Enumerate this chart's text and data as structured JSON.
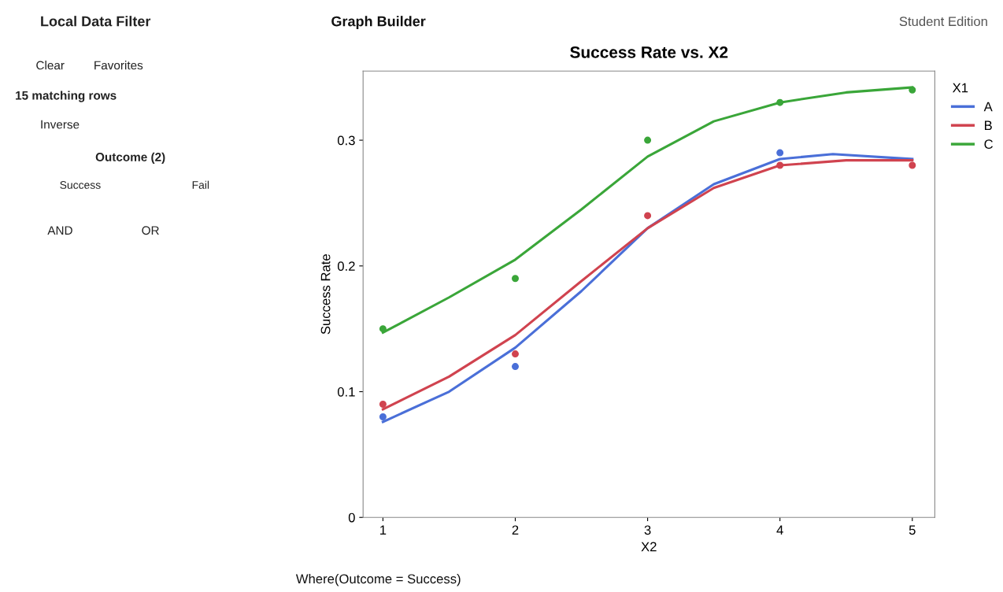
{
  "chart_data": [
    {
      "type": "other",
      "annotations": [
        "Local Data Filter",
        "Clear",
        "Favorites",
        "15 matching rows",
        "Inverse",
        "Outcome (2)",
        "Success",
        "Fail",
        "AND",
        "OR"
      ]
    },
    {
      "type": "line",
      "title": "Success Rate vs. X2",
      "xlabel": "X2",
      "ylabel": "Success Rate",
      "legend_title": "X1",
      "legend": "right",
      "grid": false,
      "marker": "none",
      "line_style": "solid",
      "annotations": [
        "Graph Builder",
        "Student Edition",
        "Where(Outcome = Success)"
      ],
      "xlim": [
        0.85,
        5.17
      ],
      "ylim": [
        0,
        0.355
      ],
      "xticks": [
        1,
        2,
        3,
        4,
        5
      ],
      "yticks": [
        0,
        {
          "value": 0.1,
          "label": "0.1"
        },
        {
          "value": 0.2,
          "label": "0.2"
        },
        {
          "value": 0.3,
          "label": "0.3"
        }
      ],
      "series": [
        {
          "name": "A",
          "color": "#4a6fd8",
          "x": [
            1,
            1.5,
            2,
            2.5,
            3,
            3.5,
            4,
            4.4,
            5
          ],
          "values": [
            0.076,
            0.1,
            0.135,
            0.18,
            0.23,
            0.265,
            0.285,
            0.289,
            0.285
          ]
        },
        {
          "name": "B",
          "color": "#d0434f",
          "x": [
            1,
            1.5,
            2,
            2.5,
            3,
            3.5,
            4,
            4.5,
            5
          ],
          "values": [
            0.086,
            0.112,
            0.145,
            0.188,
            0.23,
            0.262,
            0.28,
            0.284,
            0.284
          ]
        },
        {
          "name": "C",
          "color": "#3aa639",
          "x": [
            1,
            1.5,
            2,
            2.5,
            3,
            3.5,
            4,
            4.5,
            5
          ],
          "values": [
            0.147,
            0.175,
            0.205,
            0.245,
            0.287,
            0.315,
            0.33,
            0.338,
            0.342
          ]
        },
        {
          "type": "scatter",
          "marker": "circle",
          "color": "#4a6fd8",
          "x": [
            1,
            2,
            4
          ],
          "values": [
            0.08,
            0.12,
            0.29
          ]
        },
        {
          "type": "scatter",
          "marker": "circle",
          "color": "#d0434f",
          "x": [
            1,
            2,
            3,
            4,
            5
          ],
          "values": [
            0.09,
            0.13,
            0.24,
            0.28,
            0.28
          ]
        },
        {
          "type": "scatter",
          "marker": "circle",
          "color": "#3aa639",
          "x": [
            1,
            2,
            3,
            4,
            5
          ],
          "values": [
            0.15,
            0.19,
            0.3,
            0.33,
            0.34
          ]
        }
      ]
    }
  ]
}
